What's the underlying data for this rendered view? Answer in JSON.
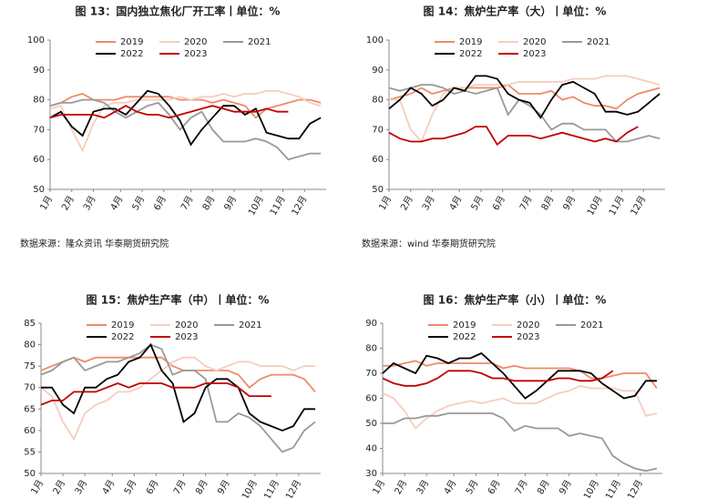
{
  "chart_data": [
    {
      "type": "line",
      "title": "图 13：国内独立焦化厂开工率丨单位：%",
      "source": "数据来源：隆众资讯 华泰期货研究院",
      "x": [
        1,
        3,
        5,
        7,
        9,
        11,
        13,
        15,
        17,
        19,
        21,
        23,
        25,
        27,
        29,
        31,
        33,
        35,
        37,
        39,
        41,
        43,
        45,
        47,
        49,
        51
      ],
      "xlim": [
        1,
        52
      ],
      "xticks": [
        {
          "value": 1,
          "label": "1月"
        },
        {
          "value": 5,
          "label": "2月"
        },
        {
          "value": 9,
          "label": "3月"
        },
        {
          "value": 14,
          "label": "4月"
        },
        {
          "value": 18,
          "label": "5月"
        },
        {
          "value": 22,
          "label": "6月"
        },
        {
          "value": 27,
          "label": "7月"
        },
        {
          "value": 31,
          "label": "8月"
        },
        {
          "value": 35,
          "label": "9月"
        },
        {
          "value": 40,
          "label": "10月"
        },
        {
          "value": 44,
          "label": "11月"
        },
        {
          "value": 48,
          "label": "12月"
        }
      ],
      "ylim": [
        50,
        100
      ],
      "yticks": [
        50,
        60,
        70,
        80,
        90,
        100
      ],
      "series": [
        {
          "name": "2019",
          "color": "#ef8a6a",
          "values": [
            78,
            79,
            81,
            82,
            80,
            80,
            80,
            81,
            81,
            81,
            81,
            81,
            80,
            80,
            80,
            79,
            80,
            79,
            78,
            74,
            77,
            78,
            79,
            80,
            80,
            79
          ]
        },
        {
          "name": "2020",
          "color": "#f6cdbd",
          "values": [
            77,
            78,
            70,
            63,
            72,
            78,
            79,
            79,
            80,
            80,
            80,
            80,
            81,
            80,
            81,
            81,
            82,
            81,
            82,
            82,
            83,
            83,
            82,
            81,
            79,
            78
          ]
        },
        {
          "name": "2021",
          "color": "#999999",
          "values": [
            78,
            79,
            79,
            80,
            80,
            79,
            76,
            74,
            76,
            78,
            79,
            75,
            70,
            74,
            76,
            70,
            66,
            66,
            66,
            67,
            66,
            64,
            60,
            61,
            62,
            62
          ]
        },
        {
          "name": "2022",
          "color": "#000000",
          "values": [
            74,
            76,
            71,
            68,
            76,
            77,
            77,
            75,
            79,
            83,
            82,
            78,
            73,
            65,
            70,
            74,
            78,
            78,
            75,
            77,
            69,
            68,
            67,
            67,
            72,
            74
          ]
        },
        {
          "name": "2023",
          "color": "#c00000",
          "values": [
            74,
            75,
            75,
            75,
            75,
            74,
            76,
            78,
            76,
            75,
            75,
            74,
            75,
            76,
            77,
            78,
            77,
            76,
            76,
            76,
            77,
            76,
            76,
            null,
            null,
            null
          ]
        }
      ]
    },
    {
      "type": "line",
      "title": "图 14：焦炉生产率（大）丨单位：%",
      "source": "数据来源：wind 华泰期货研究院",
      "x": [
        1,
        3,
        5,
        7,
        9,
        11,
        13,
        15,
        17,
        19,
        21,
        23,
        25,
        27,
        29,
        31,
        33,
        35,
        37,
        39,
        41,
        43,
        45,
        47,
        49,
        51
      ],
      "xlim": [
        1,
        52
      ],
      "xticks": [
        {
          "value": 1,
          "label": "1月"
        },
        {
          "value": 5,
          "label": "2月"
        },
        {
          "value": 9,
          "label": "3月"
        },
        {
          "value": 14,
          "label": "4月"
        },
        {
          "value": 18,
          "label": "5月"
        },
        {
          "value": 22,
          "label": "6月"
        },
        {
          "value": 27,
          "label": "7月"
        },
        {
          "value": 31,
          "label": "8月"
        },
        {
          "value": 35,
          "label": "9月"
        },
        {
          "value": 40,
          "label": "10月"
        },
        {
          "value": 44,
          "label": "11月"
        },
        {
          "value": 48,
          "label": "12月"
        }
      ],
      "ylim": [
        50,
        100
      ],
      "yticks": [
        50,
        60,
        70,
        80,
        90,
        100
      ],
      "series": [
        {
          "name": "2019",
          "color": "#ef8a6a",
          "values": [
            80,
            81,
            82,
            84,
            82,
            83,
            84,
            84,
            84,
            84,
            84,
            85,
            82,
            82,
            82,
            83,
            80,
            81,
            79,
            78,
            78,
            77,
            80,
            82,
            83,
            84
          ]
        },
        {
          "name": "2020",
          "color": "#f6cdbd",
          "values": [
            80,
            80,
            70,
            66,
            75,
            82,
            84,
            84,
            85,
            85,
            85,
            85,
            86,
            86,
            86,
            86,
            86,
            87,
            87,
            87,
            88,
            88,
            88,
            87,
            86,
            85
          ]
        },
        {
          "name": "2021",
          "color": "#999999",
          "values": [
            84,
            83,
            84,
            85,
            85,
            84,
            82,
            83,
            82,
            83,
            84,
            75,
            80,
            78,
            75,
            70,
            72,
            72,
            70,
            70,
            70,
            66,
            66,
            67,
            68,
            67
          ]
        },
        {
          "name": "2022",
          "color": "#000000",
          "values": [
            77,
            80,
            84,
            82,
            78,
            80,
            84,
            83,
            88,
            88,
            87,
            82,
            80,
            79,
            74,
            80,
            85,
            86,
            84,
            82,
            76,
            76,
            75,
            76,
            79,
            82
          ]
        },
        {
          "name": "2023",
          "color": "#c00000",
          "values": [
            69,
            67,
            66,
            66,
            67,
            67,
            68,
            69,
            71,
            71,
            65,
            68,
            68,
            68,
            67,
            68,
            69,
            68,
            67,
            66,
            67,
            66,
            69,
            71,
            null,
            null
          ]
        }
      ]
    },
    {
      "type": "line",
      "title": "图 15：焦炉生产率（中）丨单位：%",
      "x": [
        1,
        3,
        5,
        7,
        9,
        11,
        13,
        15,
        17,
        19,
        21,
        23,
        25,
        27,
        29,
        31,
        33,
        35,
        37,
        39,
        41,
        43,
        45,
        47,
        49,
        51
      ],
      "xlim": [
        1,
        52
      ],
      "xticks": [
        {
          "value": 1,
          "label": "1月"
        },
        {
          "value": 5,
          "label": "2月"
        },
        {
          "value": 9,
          "label": "3月"
        },
        {
          "value": 14,
          "label": "4月"
        },
        {
          "value": 18,
          "label": "5月"
        },
        {
          "value": 22,
          "label": "6月"
        },
        {
          "value": 27,
          "label": "7月"
        },
        {
          "value": 31,
          "label": "8月"
        },
        {
          "value": 35,
          "label": "9月"
        },
        {
          "value": 40,
          "label": "10月"
        },
        {
          "value": 44,
          "label": "11月"
        },
        {
          "value": 48,
          "label": "12月"
        }
      ],
      "ylim": [
        50,
        85
      ],
      "yticks": [
        50,
        55,
        60,
        65,
        70,
        75,
        80,
        85
      ],
      "series": [
        {
          "name": "2019",
          "color": "#ef8a6a",
          "values": [
            74,
            75,
            76,
            77,
            76,
            77,
            77,
            77,
            77,
            77,
            77,
            77,
            75,
            74,
            74,
            74,
            74,
            74,
            73,
            70,
            72,
            73,
            73,
            73,
            72,
            69
          ]
        },
        {
          "name": "2020",
          "color": "#f6cdbd",
          "values": [
            70,
            68,
            62,
            58,
            64,
            66,
            67,
            69,
            69,
            70,
            72,
            74,
            76,
            77,
            77,
            75,
            74,
            75,
            76,
            76,
            75,
            75,
            75,
            74,
            75,
            75
          ]
        },
        {
          "name": "2021",
          "color": "#999999",
          "values": [
            73,
            74,
            76,
            77,
            74,
            75,
            76,
            76,
            77,
            78,
            80,
            79,
            73,
            74,
            74,
            72,
            62,
            62,
            64,
            63,
            61,
            58,
            55,
            56,
            60,
            62
          ]
        },
        {
          "name": "2022",
          "color": "#000000",
          "values": [
            70,
            70,
            66,
            64,
            70,
            70,
            72,
            73,
            76,
            77,
            80,
            74,
            71,
            62,
            64,
            70,
            72,
            72,
            70,
            64,
            62,
            61,
            60,
            61,
            65,
            65
          ]
        },
        {
          "name": "2023",
          "color": "#c00000",
          "values": [
            66,
            67,
            67,
            69,
            69,
            69,
            70,
            71,
            70,
            71,
            71,
            71,
            70,
            70,
            70,
            71,
            71,
            71,
            70,
            68,
            68,
            68,
            null,
            null,
            null,
            null
          ]
        }
      ]
    },
    {
      "type": "line",
      "title": "图 16：焦炉生产率（小）丨单位：%",
      "x": [
        1,
        3,
        5,
        7,
        9,
        11,
        13,
        15,
        17,
        19,
        21,
        23,
        25,
        27,
        29,
        31,
        33,
        35,
        37,
        39,
        41,
        43,
        45,
        47,
        49,
        51
      ],
      "xlim": [
        1,
        52
      ],
      "xticks": [
        {
          "value": 1,
          "label": "1月"
        },
        {
          "value": 5,
          "label": "2月"
        },
        {
          "value": 9,
          "label": "3月"
        },
        {
          "value": 14,
          "label": "4月"
        },
        {
          "value": 18,
          "label": "5月"
        },
        {
          "value": 22,
          "label": "6月"
        },
        {
          "value": 27,
          "label": "7月"
        },
        {
          "value": 31,
          "label": "8月"
        },
        {
          "value": 35,
          "label": "9月"
        },
        {
          "value": 40,
          "label": "10月"
        },
        {
          "value": 44,
          "label": "11月"
        },
        {
          "value": 48,
          "label": "12月"
        }
      ],
      "ylim": [
        30,
        90
      ],
      "yticks": [
        30,
        40,
        50,
        60,
        70,
        80,
        90
      ],
      "series": [
        {
          "name": "2019",
          "color": "#ef8a6a",
          "values": [
            73,
            73,
            74,
            75,
            73,
            74,
            74,
            74,
            74,
            74,
            74,
            72,
            73,
            72,
            72,
            72,
            72,
            72,
            71,
            68,
            68,
            69,
            70,
            70,
            70,
            64
          ]
        },
        {
          "name": "2020",
          "color": "#f6cdbd",
          "values": [
            62,
            60,
            55,
            48,
            52,
            55,
            57,
            58,
            59,
            58,
            59,
            60,
            58,
            58,
            58,
            60,
            62,
            63,
            65,
            64,
            64,
            64,
            63,
            63,
            53,
            54
          ]
        },
        {
          "name": "2021",
          "color": "#999999",
          "values": [
            50,
            50,
            52,
            52,
            53,
            53,
            54,
            54,
            54,
            54,
            54,
            52,
            47,
            49,
            48,
            48,
            48,
            45,
            46,
            45,
            44,
            37,
            34,
            32,
            31,
            32
          ]
        },
        {
          "name": "2022",
          "color": "#000000",
          "values": [
            70,
            74,
            72,
            70,
            77,
            76,
            74,
            76,
            76,
            78,
            74,
            70,
            65,
            60,
            63,
            67,
            71,
            71,
            71,
            70,
            66,
            63,
            60,
            61,
            67,
            67
          ]
        },
        {
          "name": "2023",
          "color": "#c00000",
          "values": [
            68,
            66,
            65,
            65,
            66,
            68,
            71,
            71,
            71,
            70,
            68,
            68,
            67,
            67,
            67,
            67,
            68,
            68,
            67,
            67,
            68,
            71,
            null,
            null,
            null,
            null
          ]
        }
      ]
    }
  ]
}
